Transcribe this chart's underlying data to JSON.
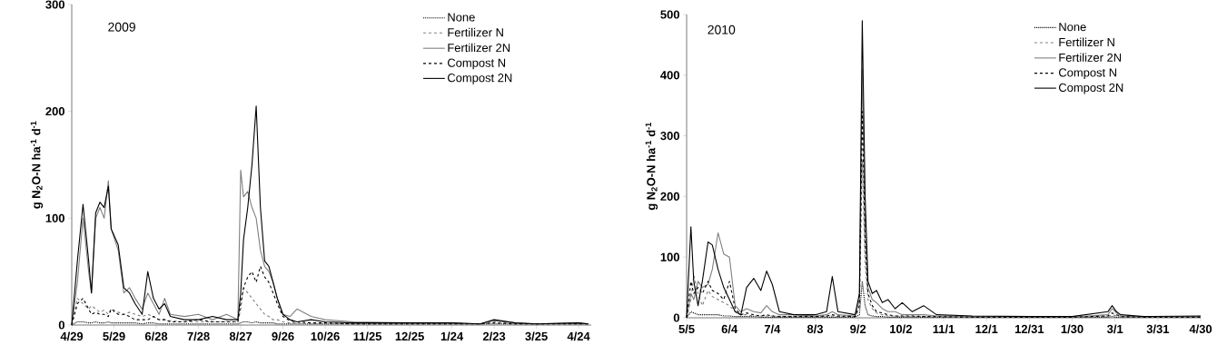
{
  "chart_data": [
    {
      "type": "line",
      "title": "2009",
      "ylabel": "g N$_{2}$O-N ha$^{-1}$ d$^{-1}$",
      "legend": "top right",
      "marker": "none",
      "grid": false,
      "xlim": [
        "2009-04-29",
        "2010-05-03"
      ],
      "ylim": [
        0,
        300
      ],
      "yticks": [
        0,
        100,
        200,
        300
      ],
      "xticks": [
        {
          "value": "2009-04-29",
          "label": "4/29"
        },
        {
          "value": "2009-05-29",
          "label": "5/29"
        },
        {
          "value": "2009-06-28",
          "label": "6/28"
        },
        {
          "value": "2009-07-28",
          "label": "7/28"
        },
        {
          "value": "2009-08-27",
          "label": "8/27"
        },
        {
          "value": "2009-09-26",
          "label": "9/26"
        },
        {
          "value": "2009-10-26",
          "label": "10/26"
        },
        {
          "value": "2009-11-25",
          "label": "11/25"
        },
        {
          "value": "2009-12-25",
          "label": "12/25"
        },
        {
          "value": "2010-01-24",
          "label": "1/24"
        },
        {
          "value": "2010-02-23",
          "label": "2/23"
        },
        {
          "value": "2010-03-25",
          "label": "3/25"
        },
        {
          "value": "2010-04-24",
          "label": "4/24"
        }
      ],
      "x": [
        "2009-04-29",
        "2009-05-03",
        "2009-05-07",
        "2009-05-11",
        "2009-05-13",
        "2009-05-16",
        "2009-05-19",
        "2009-05-22",
        "2009-05-25",
        "2009-05-27",
        "2009-06-01",
        "2009-06-05",
        "2009-06-09",
        "2009-06-13",
        "2009-06-18",
        "2009-06-22",
        "2009-06-26",
        "2009-06-30",
        "2009-07-04",
        "2009-07-08",
        "2009-07-18",
        "2009-07-28",
        "2009-08-07",
        "2009-08-17",
        "2009-08-25",
        "2009-08-27",
        "2009-08-29",
        "2009-09-01",
        "2009-09-04",
        "2009-09-07",
        "2009-09-10",
        "2009-09-13",
        "2009-09-16",
        "2009-09-19",
        "2009-09-22",
        "2009-09-26",
        "2009-10-01",
        "2009-10-06",
        "2009-10-16",
        "2009-10-26",
        "2009-11-15",
        "2009-12-25",
        "2010-01-24",
        "2010-02-13",
        "2010-02-23",
        "2010-03-10",
        "2010-03-25",
        "2010-04-24",
        "2010-05-01"
      ],
      "series": [
        {
          "name": "None",
          "color": "#000000",
          "line_style": "dotted",
          "values": [
            0,
            3,
            3,
            2,
            2,
            3,
            2,
            2,
            3,
            2,
            2,
            2,
            2,
            2,
            1,
            2,
            2,
            1,
            1,
            1,
            1,
            1,
            1,
            1,
            1,
            2,
            3,
            3,
            2,
            3,
            2,
            2,
            2,
            2,
            1,
            1,
            1,
            1,
            1,
            1,
            1,
            1,
            1,
            1,
            1,
            1,
            1,
            1,
            1
          ]
        },
        {
          "name": "Fertilizer N",
          "color": "#808080",
          "line_style": "dashed",
          "values": [
            0,
            25,
            20,
            15,
            18,
            15,
            12,
            14,
            10,
            15,
            12,
            10,
            12,
            10,
            8,
            10,
            8,
            5,
            5,
            4,
            3,
            3,
            3,
            3,
            3,
            15,
            35,
            30,
            25,
            20,
            15,
            10,
            8,
            5,
            5,
            3,
            2,
            2,
            1,
            1,
            1,
            1,
            1,
            1,
            3,
            1,
            1,
            1,
            1
          ]
        },
        {
          "name": "Fertilizer 2N",
          "color": "#808080",
          "line_style": "solid",
          "values": [
            0,
            40,
            100,
            50,
            30,
            100,
            110,
            100,
            135,
            90,
            70,
            30,
            35,
            25,
            15,
            30,
            20,
            10,
            25,
            10,
            8,
            10,
            5,
            10,
            5,
            145,
            120,
            125,
            110,
            100,
            70,
            55,
            50,
            40,
            25,
            10,
            8,
            15,
            8,
            5,
            3,
            2,
            2,
            1,
            4,
            2,
            1,
            2,
            1
          ]
        },
        {
          "name": "Compost N",
          "color": "#000000",
          "line_style": "dashed",
          "values": [
            0,
            20,
            25,
            15,
            10,
            12,
            10,
            10,
            8,
            15,
            10,
            10,
            8,
            5,
            5,
            5,
            8,
            5,
            5,
            3,
            3,
            5,
            3,
            3,
            3,
            20,
            35,
            45,
            50,
            40,
            55,
            45,
            40,
            30,
            20,
            8,
            4,
            3,
            2,
            2,
            1,
            1,
            1,
            1,
            2,
            1,
            1,
            1,
            1
          ]
        },
        {
          "name": "Compost 2N",
          "color": "#000000",
          "line_style": "solid",
          "values": [
            0,
            60,
            113,
            60,
            30,
            105,
            115,
            110,
            130,
            90,
            75,
            35,
            30,
            20,
            10,
            50,
            25,
            15,
            20,
            8,
            5,
            5,
            8,
            5,
            5,
            30,
            80,
            110,
            150,
            205,
            110,
            60,
            55,
            40,
            25,
            10,
            5,
            3,
            5,
            3,
            2,
            2,
            2,
            1,
            5,
            2,
            1,
            2,
            1
          ]
        }
      ]
    },
    {
      "type": "line",
      "title": "2010",
      "ylabel": "g N$_{2}$O-N ha$^{-1}$ d$^{-1}$",
      "legend": "top right",
      "marker": "none",
      "grid": false,
      "xlim": [
        "2010-05-05",
        "2011-04-30"
      ],
      "ylim": [
        0,
        500
      ],
      "yticks": [
        0,
        100,
        200,
        300,
        400,
        500
      ],
      "xticks": [
        {
          "value": "2010-05-05",
          "label": "5/5"
        },
        {
          "value": "2010-06-04",
          "label": "6/4"
        },
        {
          "value": "2010-07-04",
          "label": "7/4"
        },
        {
          "value": "2010-08-03",
          "label": "8/3"
        },
        {
          "value": "2010-09-02",
          "label": "9/2"
        },
        {
          "value": "2010-10-02",
          "label": "10/2"
        },
        {
          "value": "2010-11-01",
          "label": "11/1"
        },
        {
          "value": "2010-12-01",
          "label": "12/1"
        },
        {
          "value": "2010-12-31",
          "label": "12/31"
        },
        {
          "value": "2011-01-30",
          "label": "1/30"
        },
        {
          "value": "2011-03-01",
          "label": "3/1"
        },
        {
          "value": "2011-03-31",
          "label": "3/31"
        },
        {
          "value": "2011-04-30",
          "label": "4/30"
        }
      ],
      "x": [
        "2010-05-05",
        "2010-05-08",
        "2010-05-10",
        "2010-05-13",
        "2010-05-16",
        "2010-05-20",
        "2010-05-23",
        "2010-05-27",
        "2010-05-31",
        "2010-06-04",
        "2010-06-08",
        "2010-06-12",
        "2010-06-16",
        "2010-06-21",
        "2010-06-26",
        "2010-06-30",
        "2010-07-04",
        "2010-07-09",
        "2010-07-19",
        "2010-08-03",
        "2010-08-11",
        "2010-08-15",
        "2010-08-19",
        "2010-08-31",
        "2010-09-03",
        "2010-09-05",
        "2010-09-07",
        "2010-09-09",
        "2010-09-12",
        "2010-09-15",
        "2010-09-19",
        "2010-09-23",
        "2010-09-28",
        "2010-10-03",
        "2010-10-10",
        "2010-10-18",
        "2010-10-27",
        "2010-11-21",
        "2010-12-31",
        "2011-01-30",
        "2011-02-24",
        "2011-02-27",
        "2011-03-02",
        "2011-03-05",
        "2011-03-21",
        "2011-04-30"
      ],
      "series": [
        {
          "name": "None",
          "color": "#000000",
          "line_style": "dotted",
          "values": [
            0,
            10,
            8,
            5,
            5,
            5,
            5,
            5,
            3,
            3,
            2,
            2,
            2,
            2,
            1,
            1,
            1,
            1,
            1,
            1,
            1,
            1,
            1,
            1,
            5,
            60,
            20,
            5,
            3,
            2,
            2,
            1,
            1,
            1,
            1,
            1,
            1,
            1,
            1,
            1,
            1,
            2,
            1,
            1,
            1,
            1
          ]
        },
        {
          "name": "Fertilizer N",
          "color": "#808080",
          "line_style": "dashed",
          "values": [
            0,
            30,
            70,
            40,
            20,
            45,
            35,
            30,
            25,
            20,
            10,
            5,
            5,
            3,
            3,
            3,
            3,
            2,
            2,
            2,
            2,
            3,
            2,
            2,
            15,
            260,
            90,
            30,
            15,
            8,
            5,
            3,
            3,
            2,
            2,
            2,
            1,
            1,
            1,
            1,
            2,
            5,
            3,
            1,
            1,
            1
          ]
        },
        {
          "name": "Fertilizer 2N",
          "color": "#808080",
          "line_style": "solid",
          "values": [
            0,
            40,
            30,
            60,
            50,
            55,
            80,
            140,
            105,
            100,
            20,
            10,
            15,
            10,
            8,
            20,
            10,
            5,
            5,
            3,
            5,
            10,
            5,
            3,
            30,
            410,
            150,
            50,
            30,
            25,
            15,
            10,
            10,
            5,
            5,
            5,
            3,
            2,
            1,
            1,
            5,
            15,
            8,
            3,
            1,
            2
          ]
        },
        {
          "name": "Compost N",
          "color": "#000000",
          "line_style": "dashed",
          "values": [
            0,
            60,
            40,
            50,
            40,
            60,
            45,
            40,
            30,
            60,
            15,
            5,
            8,
            5,
            3,
            5,
            3,
            2,
            2,
            2,
            3,
            5,
            3,
            2,
            20,
            340,
            120,
            40,
            20,
            10,
            8,
            5,
            3,
            3,
            3,
            2,
            2,
            1,
            1,
            1,
            3,
            8,
            5,
            2,
            1,
            1
          ]
        },
        {
          "name": "Compost 2N",
          "color": "#000000",
          "line_style": "solid",
          "values": [
            0,
            150,
            60,
            20,
            60,
            125,
            120,
            80,
            50,
            30,
            10,
            5,
            50,
            65,
            45,
            77,
            55,
            10,
            5,
            5,
            10,
            68,
            10,
            5,
            40,
            490,
            200,
            60,
            40,
            45,
            25,
            30,
            15,
            25,
            10,
            20,
            5,
            3,
            2,
            2,
            10,
            20,
            10,
            5,
            2,
            3
          ]
        }
      ]
    }
  ]
}
